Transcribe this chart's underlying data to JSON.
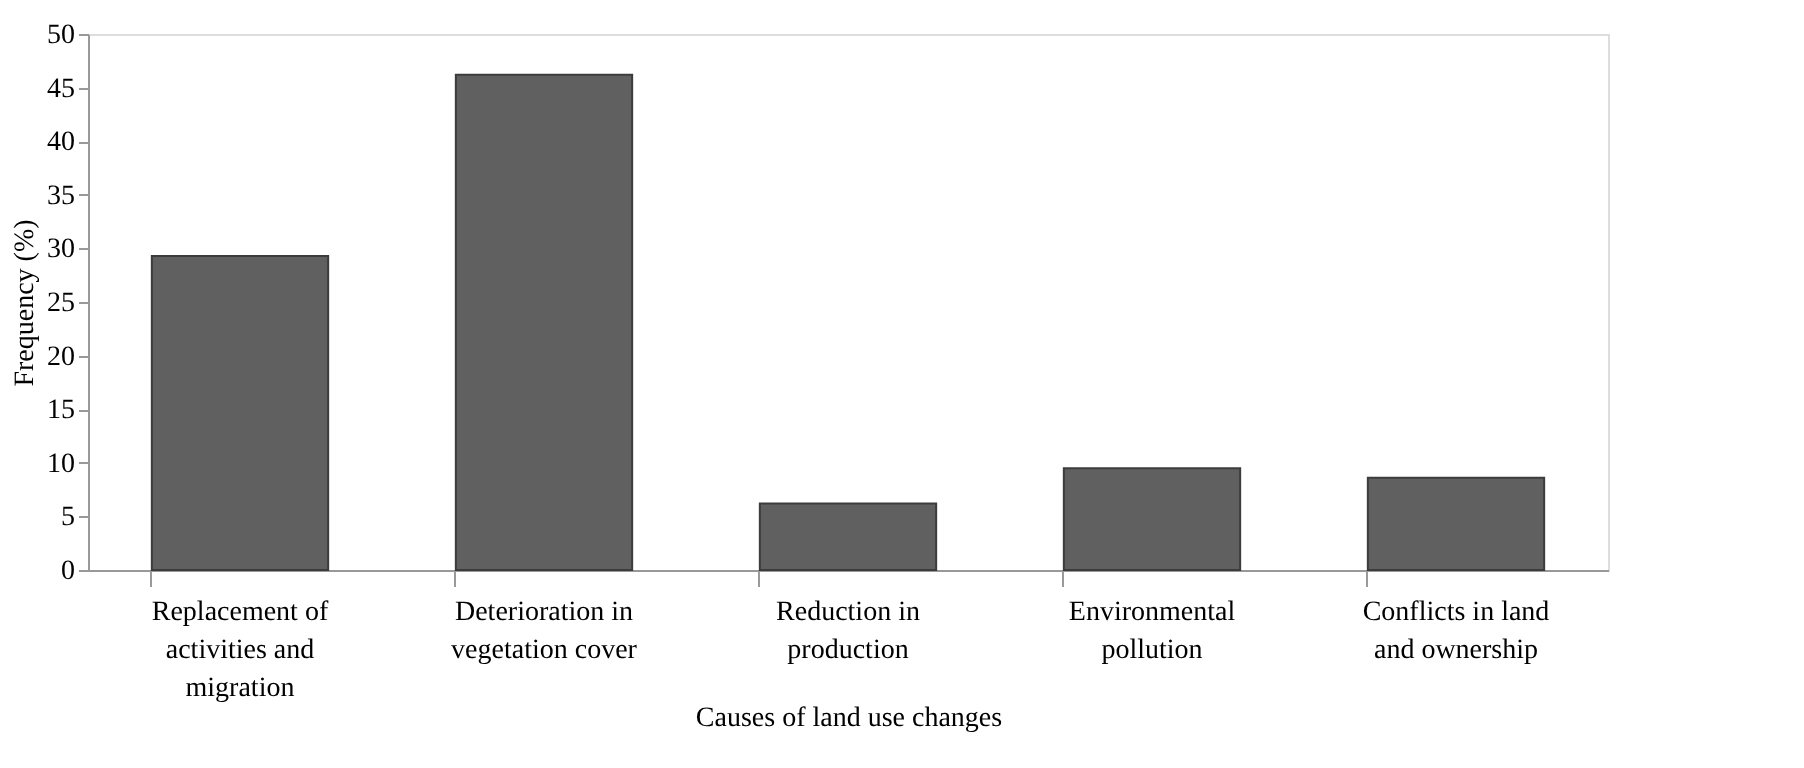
{
  "chart_data": {
    "type": "bar",
    "xlabel": "Causes of land use changes",
    "ylabel": "Frequency (%)",
    "categories": [
      "Replacement of activities and migration",
      "Deterioration in vegetation cover",
      "Reduction in production",
      "Environmental pollution",
      "Conflicts in land and ownership"
    ],
    "values": [
      29.3,
      46.2,
      6.2,
      9.5,
      8.6
    ],
    "color": "#606060",
    "ylim": [
      0,
      50
    ],
    "yticks": [
      0,
      5,
      10,
      15,
      20,
      25,
      30,
      35,
      40,
      45,
      50
    ],
    "grid": false
  }
}
